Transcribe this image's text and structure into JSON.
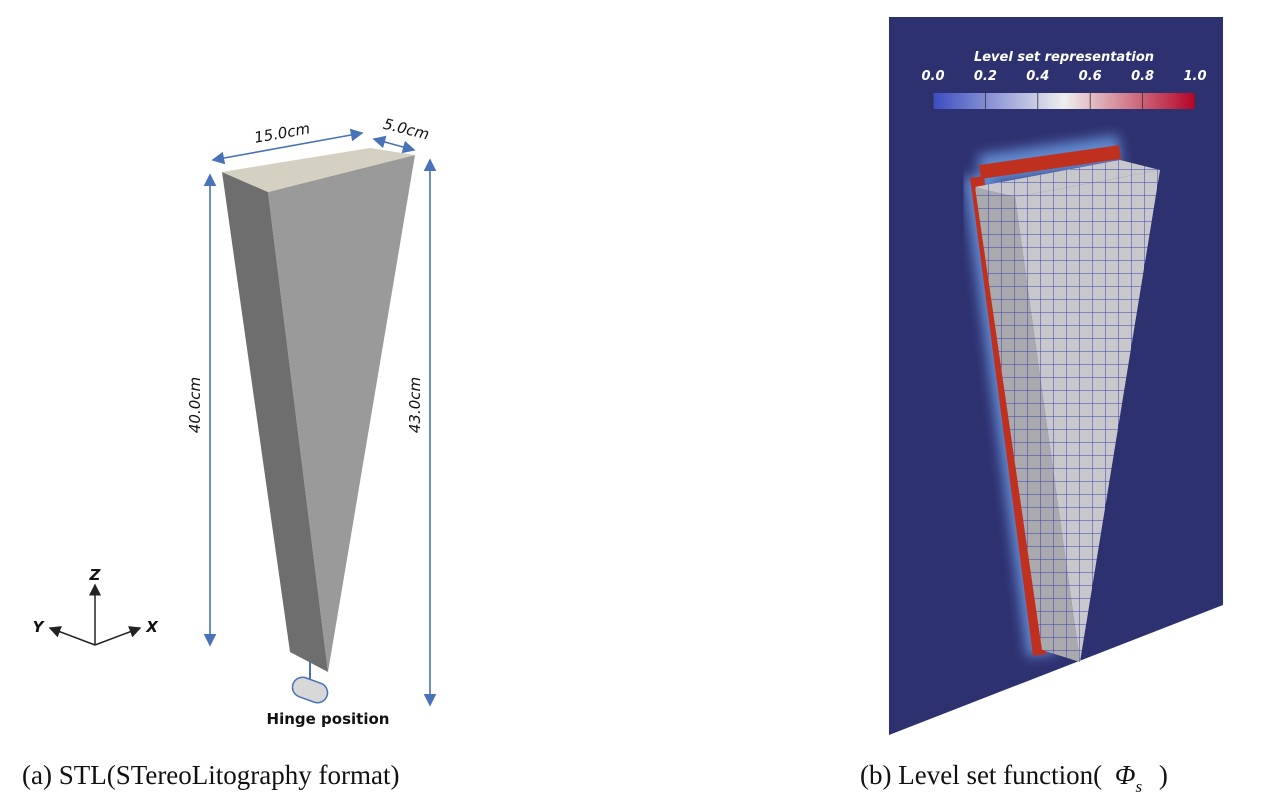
{
  "panel_a": {
    "dimensions": {
      "width": "15.0cm",
      "depth": "5.0cm",
      "height_left": "40.0cm",
      "height_right": "43.0cm"
    },
    "axes": {
      "z": "Z",
      "y": "Y",
      "x": "X"
    },
    "hinge_label": "Hinge position",
    "caption": "(a) STL(STereoLitography format)"
  },
  "panel_b": {
    "colorbar": {
      "title": "Level set representation",
      "ticks": [
        {
          "value": 0,
          "label": "0.0"
        },
        {
          "value": 0.2,
          "label": "0.2"
        },
        {
          "value": 0.4,
          "label": "0.4"
        },
        {
          "value": 0.6,
          "label": "0.6"
        },
        {
          "value": 0.8,
          "label": "0.8"
        },
        {
          "value": 1,
          "label": "1.0"
        }
      ]
    },
    "caption": {
      "prefix": "(b) Level set function(",
      "symbol": "Φ",
      "subscript": "s",
      "suffix": ")"
    }
  }
}
